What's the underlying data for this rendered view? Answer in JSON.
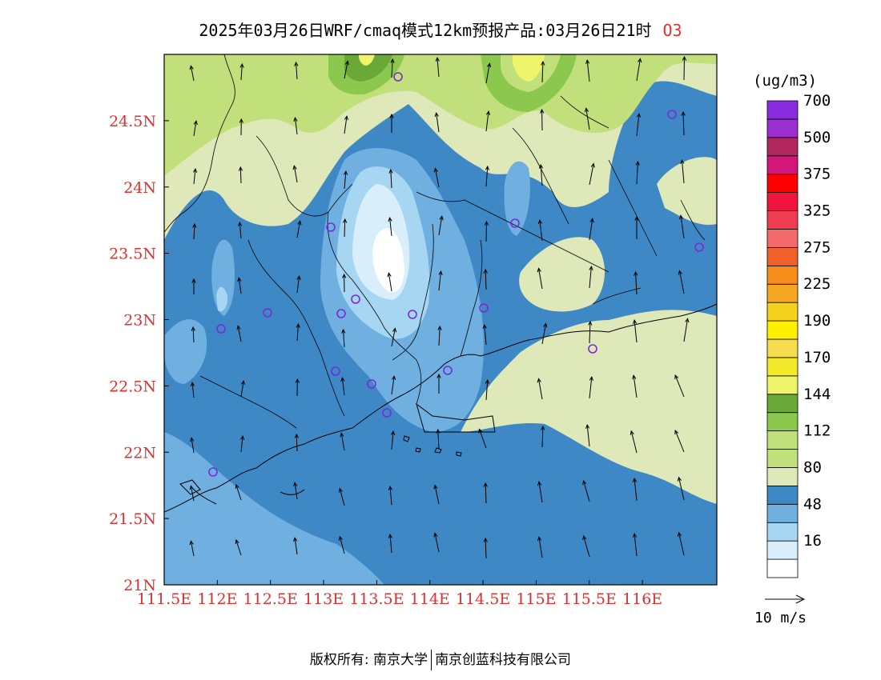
{
  "header": {
    "title": "2025年03月26日WRF/cmaq模式12km预报产品:03月26日21时",
    "species": "O3"
  },
  "map": {
    "lat_ticks": [
      "24.5N",
      "24N",
      "23.5N",
      "23N",
      "22.5N",
      "22N",
      "21.5N",
      "21N"
    ],
    "lon_ticks": [
      "111.5E",
      "112E",
      "112.5E",
      "113E",
      "113.5E",
      "114E",
      "114.5E",
      "115E",
      "115.5E",
      "116E"
    ],
    "lat_range": [
      21,
      25
    ],
    "lon_range": [
      111.5,
      116.7
    ],
    "tick_color": "#e03030"
  },
  "legend": {
    "unit": "(ug/m3)",
    "bins": [
      {
        "label": "",
        "color": "#ffffff"
      },
      {
        "label": "16",
        "color": "#d8eefa"
      },
      {
        "label": "",
        "color": "#a6d6f2"
      },
      {
        "label": "48",
        "color": "#6fb0e0"
      },
      {
        "label": "",
        "color": "#3e88c6"
      },
      {
        "label": "80",
        "color": "#dfe8b9"
      },
      {
        "label": "",
        "color": "#c1df7a"
      },
      {
        "label": "112",
        "color": "#c1df7a"
      },
      {
        "label": "",
        "color": "#8dc84e"
      },
      {
        "label": "144",
        "color": "#6aa837"
      },
      {
        "label": "",
        "color": "#eef56a"
      },
      {
        "label": "170",
        "color": "#f3ea2c"
      },
      {
        "label": "",
        "color": "#f5dd4d"
      },
      {
        "label": "190",
        "color": "#ffef00"
      },
      {
        "label": "",
        "color": "#f7d21c"
      },
      {
        "label": "225",
        "color": "#f5a623"
      },
      {
        "label": "",
        "color": "#f78e1b"
      },
      {
        "label": "275",
        "color": "#f0602a"
      },
      {
        "label": "",
        "color": "#f46a6a"
      },
      {
        "label": "325",
        "color": "#f03c50"
      },
      {
        "label": "",
        "color": "#f0153c"
      },
      {
        "label": "375",
        "color": "#ff0000"
      },
      {
        "label": "",
        "color": "#d4157a"
      },
      {
        "label": "500",
        "color": "#b2285e"
      },
      {
        "label": "",
        "color": "#9b2fd0"
      },
      {
        "label": "700",
        "color": "#8a2be2"
      }
    ]
  },
  "wind_scale": {
    "label": "10 m/s"
  },
  "footer": {
    "left": "版权所有: 南京大学",
    "right": "南京创蓝科技有限公司"
  }
}
